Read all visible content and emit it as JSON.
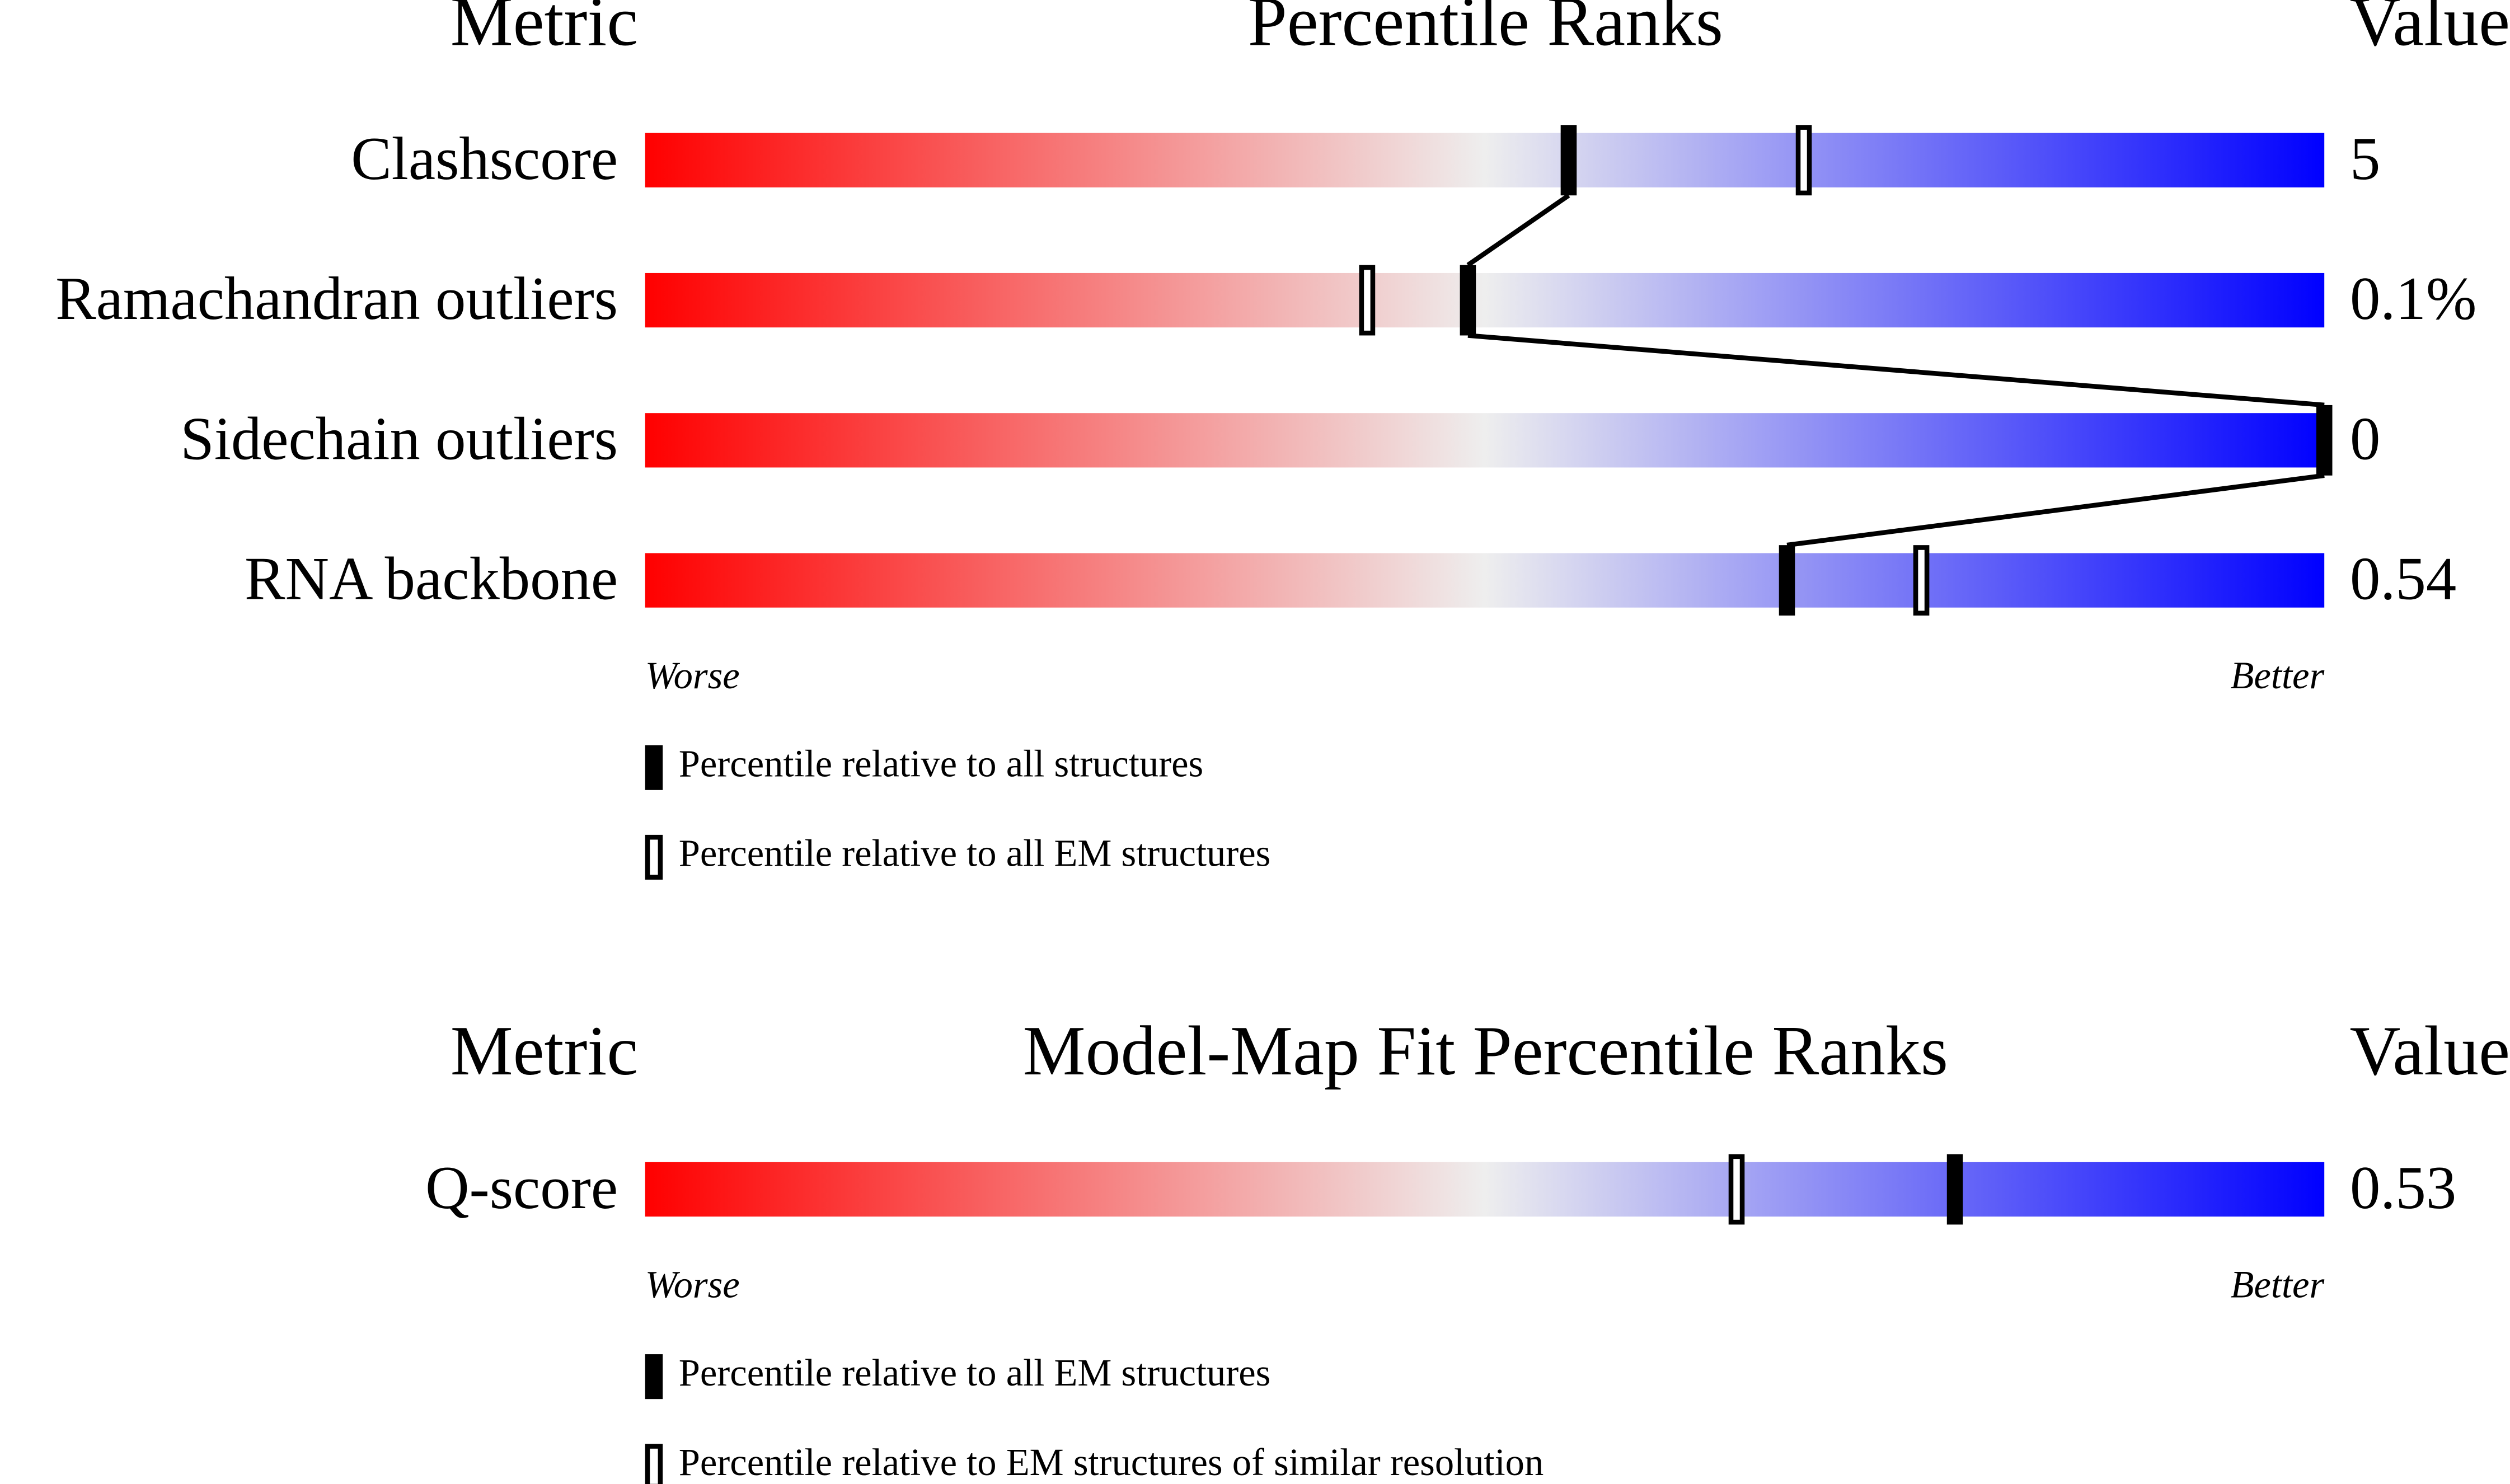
{
  "chart_data": [
    {
      "type": "percentile",
      "title": "Percentile Ranks",
      "metric_header": "Metric",
      "value_header": "Value",
      "metrics": [
        "Clashscore",
        "Ramachandran outliers",
        "Sidechain outliers",
        "RNA backbone"
      ],
      "metric_values": [
        "5",
        "0.1%",
        "0",
        "0.54"
      ],
      "series": [
        {
          "name": "Percentile relative to all structures",
          "style": "filled",
          "color": "#000000",
          "values": [
            55,
            49,
            100,
            68
          ]
        },
        {
          "name": "Percentile relative to all EM structures",
          "style": "outline",
          "color": "#000000",
          "values": [
            69,
            43,
            null,
            76
          ]
        }
      ],
      "xlim": [
        0,
        100
      ],
      "x_low_label": "Worse",
      "x_high_label": "Better",
      "gradient": [
        "#ff0000",
        "#eeeeee",
        "#0000ff"
      ],
      "connect_filled": true
    },
    {
      "type": "percentile",
      "title": "Model-Map Fit Percentile Ranks",
      "metric_header": "Metric",
      "value_header": "Value",
      "metrics": [
        "Q-score"
      ],
      "metric_values": [
        "0.53"
      ],
      "series": [
        {
          "name": "Percentile relative to all EM structures",
          "style": "filled",
          "color": "#000000",
          "values": [
            78
          ]
        },
        {
          "name": "Percentile relative to EM structures of similar resolution",
          "style": "outline",
          "color": "#000000",
          "values": [
            65
          ]
        }
      ],
      "xlim": [
        0,
        100
      ],
      "x_low_label": "Worse",
      "x_high_label": "Better",
      "gradient": [
        "#ff0000",
        "#eeeeee",
        "#0000ff"
      ],
      "connect_filled": true
    }
  ]
}
